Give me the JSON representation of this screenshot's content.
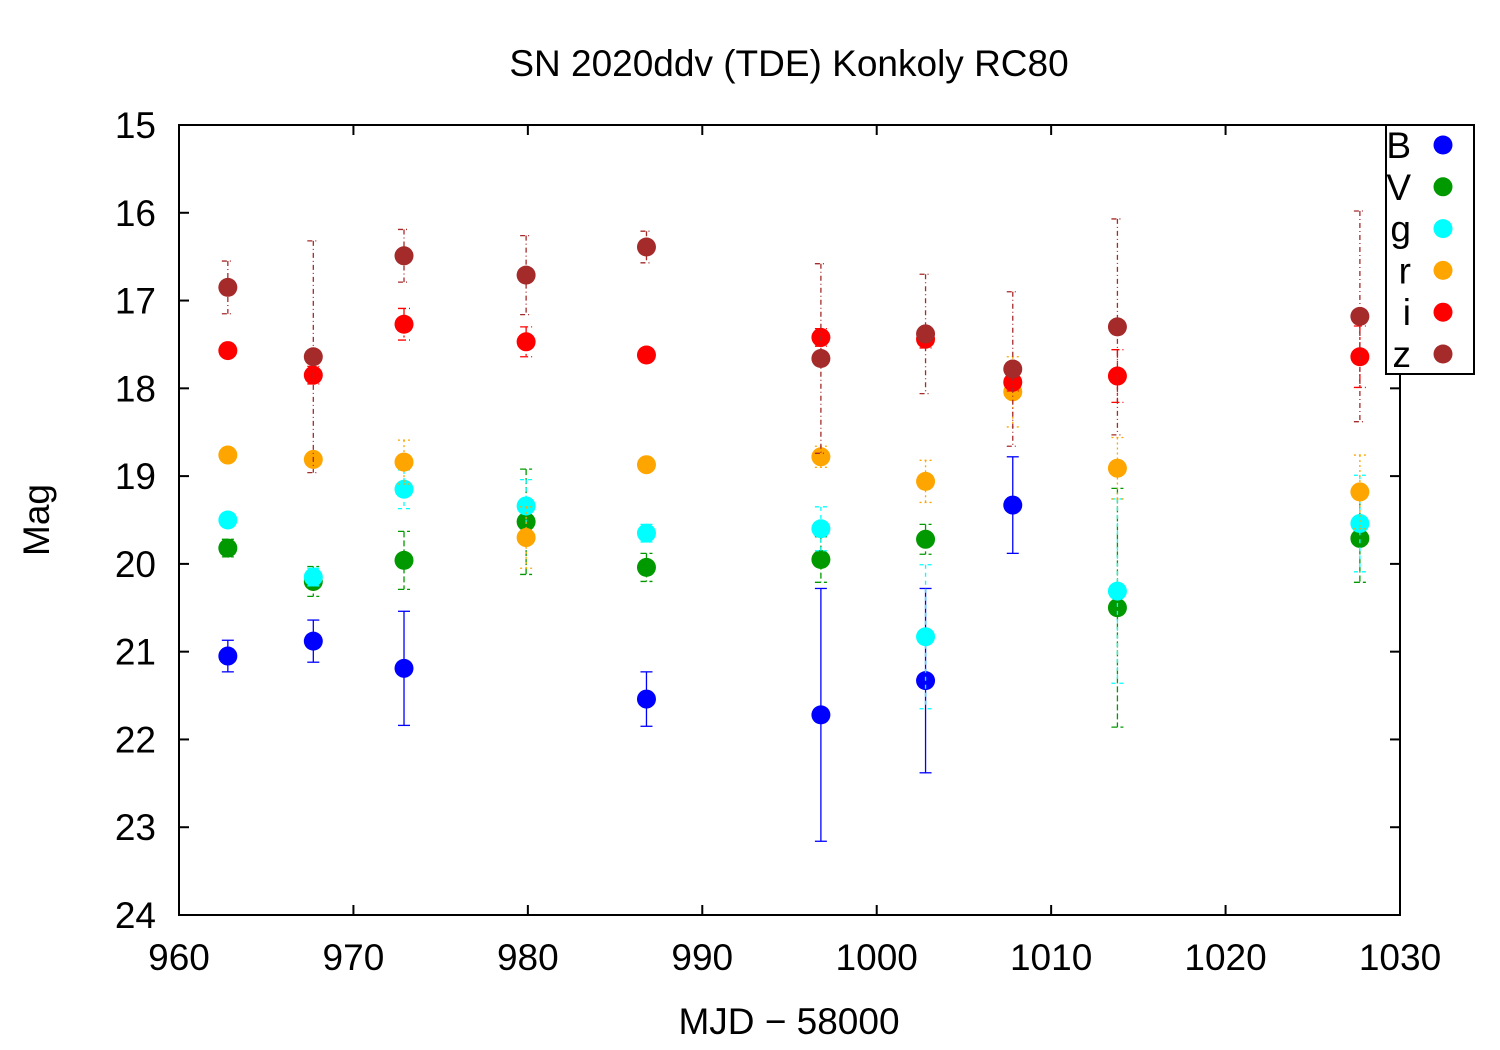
{
  "chart_data": {
    "type": "scatter",
    "title": "SN 2020ddv (TDE) Konkoly RC80",
    "xlabel": "MJD − 58000",
    "ylabel": "Mag",
    "xlim": [
      960,
      1030
    ],
    "ylim": [
      15,
      24
    ],
    "y_inverted": true,
    "x_ticks": [
      "960",
      "970",
      "980",
      "990",
      "1000",
      "1010",
      "1020",
      "1030"
    ],
    "y_ticks": [
      "15",
      "16",
      "17",
      "18",
      "19",
      "20",
      "21",
      "22",
      "23",
      "24"
    ],
    "grid": false,
    "legend_position": "top-right",
    "series": [
      {
        "name": "B",
        "color": "#0000ff",
        "points": [
          {
            "x": 962.8,
            "y": 21.05,
            "err": 0.18
          },
          {
            "x": 967.7,
            "y": 20.88,
            "err": 0.24
          },
          {
            "x": 972.9,
            "y": 21.19,
            "err": 0.65
          },
          {
            "x": 986.8,
            "y": 21.54,
            "err": 0.31
          },
          {
            "x": 996.8,
            "y": 21.72,
            "err": 1.44
          },
          {
            "x": 1002.8,
            "y": 21.33,
            "err": 1.05
          },
          {
            "x": 1007.8,
            "y": 19.33,
            "err": 0.55
          }
        ]
      },
      {
        "name": "V",
        "color": "#009900",
        "points": [
          {
            "x": 962.8,
            "y": 19.82,
            "err": 0.1
          },
          {
            "x": 967.7,
            "y": 20.2,
            "err": 0.17
          },
          {
            "x": 972.9,
            "y": 19.96,
            "err": 0.33
          },
          {
            "x": 979.9,
            "y": 19.52,
            "err": 0.6
          },
          {
            "x": 986.8,
            "y": 20.04,
            "err": 0.16
          },
          {
            "x": 996.8,
            "y": 19.95,
            "err": 0.26
          },
          {
            "x": 1002.8,
            "y": 19.72,
            "err": 0.17
          },
          {
            "x": 1013.8,
            "y": 20.5,
            "err": 1.36
          },
          {
            "x": 1027.7,
            "y": 19.71,
            "err": 0.5
          }
        ]
      },
      {
        "name": "g",
        "color": "#00ffff",
        "points": [
          {
            "x": 962.8,
            "y": 19.5,
            "err": 0.0
          },
          {
            "x": 967.7,
            "y": 20.15,
            "err": 0.1
          },
          {
            "x": 972.9,
            "y": 19.15,
            "err": 0.22
          },
          {
            "x": 979.9,
            "y": 19.34,
            "err": 0.3
          },
          {
            "x": 986.8,
            "y": 19.65,
            "err": 0.1
          },
          {
            "x": 996.8,
            "y": 19.6,
            "err": 0.25
          },
          {
            "x": 1002.8,
            "y": 20.83,
            "err": 0.82
          },
          {
            "x": 1013.8,
            "y": 20.31,
            "err": 1.05
          },
          {
            "x": 1027.7,
            "y": 19.54,
            "err": 0.55
          }
        ]
      },
      {
        "name": "r",
        "color": "#ffa500",
        "points": [
          {
            "x": 962.8,
            "y": 18.76,
            "err": 0.0
          },
          {
            "x": 967.7,
            "y": 18.81,
            "err": 0.0
          },
          {
            "x": 972.9,
            "y": 18.84,
            "err": 0.25
          },
          {
            "x": 979.9,
            "y": 19.7,
            "err": 0.35
          },
          {
            "x": 986.8,
            "y": 18.87,
            "err": 0.0
          },
          {
            "x": 996.8,
            "y": 18.78,
            "err": 0.12
          },
          {
            "x": 1002.8,
            "y": 19.06,
            "err": 0.24
          },
          {
            "x": 1007.8,
            "y": 18.04,
            "err": 0.4
          },
          {
            "x": 1013.8,
            "y": 18.91,
            "err": 0.35
          },
          {
            "x": 1027.7,
            "y": 19.18,
            "err": 0.42
          }
        ]
      },
      {
        "name": "i",
        "color": "#ff0000",
        "points": [
          {
            "x": 962.8,
            "y": 17.57,
            "err": 0.0
          },
          {
            "x": 967.7,
            "y": 17.85,
            "err": 0.1
          },
          {
            "x": 972.9,
            "y": 17.27,
            "err": 0.18
          },
          {
            "x": 979.9,
            "y": 17.47,
            "err": 0.17
          },
          {
            "x": 986.8,
            "y": 17.62,
            "err": 0.0
          },
          {
            "x": 996.8,
            "y": 17.42,
            "err": 0.1
          },
          {
            "x": 1002.8,
            "y": 17.44,
            "err": 0.1
          },
          {
            "x": 1007.8,
            "y": 17.93,
            "err": 0.1
          },
          {
            "x": 1013.8,
            "y": 17.86,
            "err": 0.3
          },
          {
            "x": 1027.7,
            "y": 17.64,
            "err": 0.35
          }
        ]
      },
      {
        "name": "z",
        "color": "#a52a2a",
        "points": [
          {
            "x": 962.8,
            "y": 16.85,
            "err": 0.3
          },
          {
            "x": 967.7,
            "y": 17.64,
            "err": 1.32
          },
          {
            "x": 972.9,
            "y": 16.49,
            "err": 0.3
          },
          {
            "x": 979.9,
            "y": 16.71,
            "err": 0.45
          },
          {
            "x": 986.8,
            "y": 16.39,
            "err": 0.18
          },
          {
            "x": 996.8,
            "y": 17.66,
            "err": 1.08
          },
          {
            "x": 1002.8,
            "y": 17.38,
            "err": 0.68
          },
          {
            "x": 1007.8,
            "y": 17.78,
            "err": 0.88
          },
          {
            "x": 1013.8,
            "y": 17.3,
            "err": 1.23
          },
          {
            "x": 1027.7,
            "y": 17.18,
            "err": 1.2
          }
        ]
      }
    ]
  }
}
